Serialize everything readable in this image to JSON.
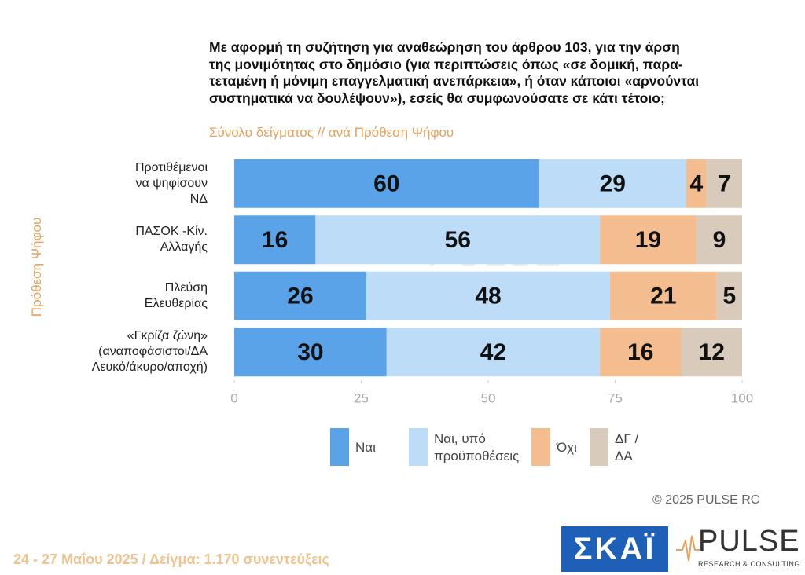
{
  "chart_data": {
    "type": "stacked-bar-horizontal",
    "title": [
      "Με αφορμή τη συζήτηση για αναθεώρηση του άρθρου 103, για την άρση",
      "της μονιμότητας στο δημόσιο (για περιπτώσεις όπως «σε δομική, παρα-",
      "τεταμένη ή μόνιμη επαγγελματική ανεπάρκεια», ή όταν κάποιοι «αρνούνται",
      "συστηματικά να δουλέψουν»), εσείς θα συμφωνούσατε σε κάτι τέτοιο;"
    ],
    "subtitle": "Σύνολο δείγματος // ανά Πρόθεση Ψήφου",
    "y_label": "Πρόθεση Ψήφου",
    "categories": [
      "Προτιθέμενοι\nνα ψηφίσουν\nΝΔ",
      "ΠΑΣΟΚ -Κίν.\nΑλλαγής",
      "Πλεύση\nΕλευθερίας",
      "«Γκρίζα ζώνη»\n(αναποφάσιστοι/ΔΑ\nΛευκό/άκυρο/αποχή)"
    ],
    "series": [
      {
        "name": "Ναι",
        "color": "#5ba3e8",
        "values": [
          60,
          16,
          26,
          30
        ]
      },
      {
        "name": "Ναι, υπό\nπροϋποθέσεις",
        "color": "#bcdcf7",
        "values": [
          29,
          56,
          48,
          42
        ]
      },
      {
        "name": "Όχι",
        "color": "#f3bd90",
        "values": [
          4,
          19,
          21,
          16
        ]
      },
      {
        "name": "ΔΓ /\nΔΑ",
        "color": "#d9cbbb",
        "values": [
          7,
          9,
          5,
          12
        ]
      }
    ],
    "xlim": [
      0,
      100
    ],
    "xticks": [
      0,
      25,
      50,
      75,
      100
    ],
    "copyright": "©  2025  PULSE RC",
    "footer": "24 - 27 Μαΐου 2025  /  Δείγμα:  1.170 συνεντεύξεις",
    "logo_skai": "ΣΚΑΪ",
    "logo_pulse": "PULSE",
    "logo_pulse_sub": "RESEARCH & CONSULTING"
  }
}
